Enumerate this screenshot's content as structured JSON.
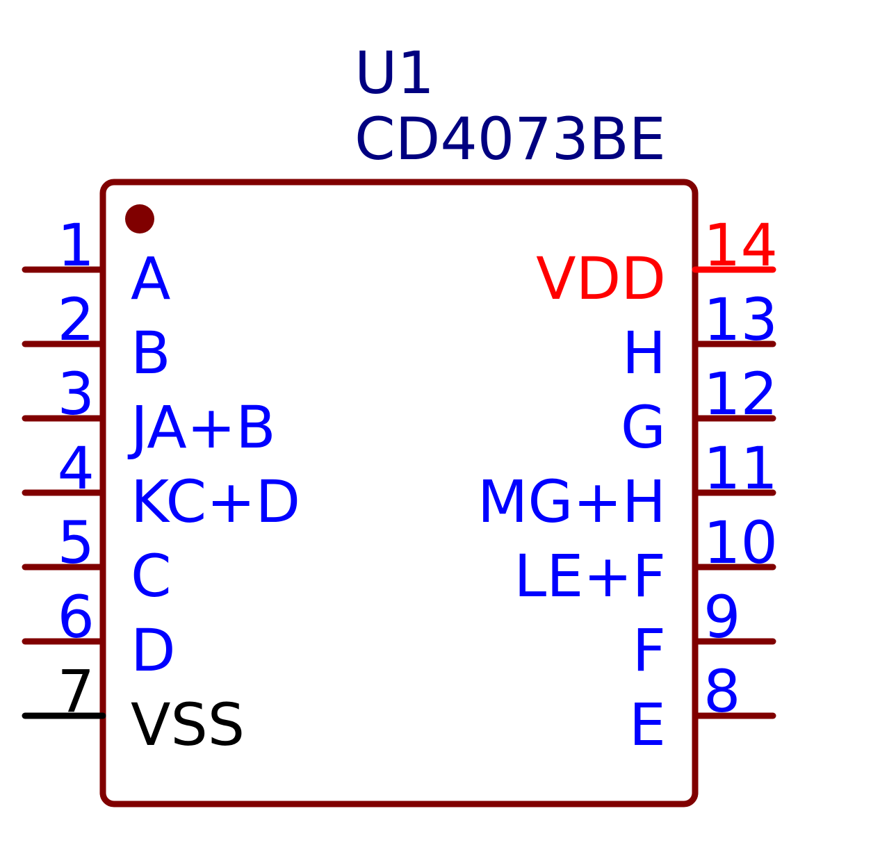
{
  "component": {
    "reference": "U1",
    "value": "CD4073BE",
    "text_color": "#000080",
    "body_color": "#800000"
  },
  "colors": {
    "signal_pin": "#0000ff",
    "power_pin": "#ff0000",
    "ground_pin": "#000000",
    "pin_line": "#800000"
  },
  "left_pins": [
    {
      "number": "1",
      "name": "A",
      "kind": "signal"
    },
    {
      "number": "2",
      "name": "B",
      "kind": "signal"
    },
    {
      "number": "3",
      "name": "JA+B",
      "kind": "signal"
    },
    {
      "number": "4",
      "name": "KC+D",
      "kind": "signal"
    },
    {
      "number": "5",
      "name": "C",
      "kind": "signal"
    },
    {
      "number": "6",
      "name": "D",
      "kind": "signal"
    },
    {
      "number": "7",
      "name": "VSS",
      "kind": "ground"
    }
  ],
  "right_pins": [
    {
      "number": "14",
      "name": "VDD",
      "kind": "power"
    },
    {
      "number": "13",
      "name": "H",
      "kind": "signal"
    },
    {
      "number": "12",
      "name": "G",
      "kind": "signal"
    },
    {
      "number": "11",
      "name": "MG+H",
      "kind": "signal"
    },
    {
      "number": "10",
      "name": "LE+F",
      "kind": "signal"
    },
    {
      "number": "9",
      "name": "F",
      "kind": "signal"
    },
    {
      "number": "8",
      "name": "E",
      "kind": "signal"
    }
  ]
}
